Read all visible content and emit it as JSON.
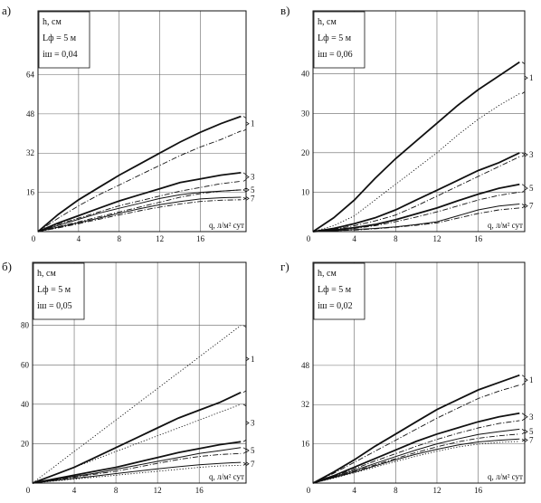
{
  "chart_data": [
    {
      "type": "line",
      "panel_label": "а)",
      "legend": [
        "h, см",
        "Lф = 5 м",
        "iш = 0,04"
      ],
      "xlabel": "q, л/м² сут",
      "x_ticks": [
        4,
        8,
        12,
        16
      ],
      "y_ticks": [
        16,
        32,
        48,
        64
      ],
      "origin_label": "0",
      "xlim": [
        0,
        20.5
      ],
      "ylim": [
        0,
        90
      ],
      "grid": true,
      "x": [
        0,
        2,
        4,
        6,
        8,
        10,
        12,
        14,
        16,
        18,
        20
      ],
      "series": [
        {
          "label": "1",
          "style": "thick",
          "values": [
            0,
            7,
            13,
            18,
            23,
            27.5,
            32,
            36.5,
            40.5,
            44,
            47
          ]
        },
        {
          "style": "dashdot",
          "values": [
            0,
            5.5,
            10.5,
            15,
            19,
            23,
            27,
            31,
            34.5,
            37.5,
            41
          ]
        },
        {
          "label": "3",
          "style": "thick",
          "values": [
            0,
            3.5,
            6.5,
            9.5,
            12.5,
            15,
            17.5,
            20,
            21.5,
            23,
            24
          ]
        },
        {
          "style": "dashdot",
          "values": [
            0,
            3,
            5.5,
            8,
            10.5,
            12.5,
            14.5,
            16.5,
            18,
            19.5,
            20.5
          ]
        },
        {
          "label": "5",
          "style": "thin",
          "values": [
            0,
            2.5,
            5,
            7.5,
            9.5,
            11.5,
            13.5,
            15,
            16,
            16.5,
            17
          ]
        },
        {
          "style": "dashdot",
          "values": [
            0,
            2,
            4,
            6,
            8,
            10,
            12,
            14,
            15.5,
            16.5,
            17
          ]
        },
        {
          "label": "7",
          "style": "thin",
          "values": [
            0,
            1.8,
            3.6,
            5.5,
            7.5,
            9.3,
            11,
            12.3,
            13.3,
            13.8,
            14
          ]
        },
        {
          "style": "dashdot",
          "values": [
            0,
            1.5,
            3.2,
            5,
            6.8,
            8.5,
            10,
            11.3,
            12.3,
            12.8,
            13
          ]
        }
      ]
    },
    {
      "type": "line",
      "panel_label": "в)",
      "legend": [
        "h, см",
        "Lф = 5 м",
        "iш = 0,06"
      ],
      "xlabel": "q, л/м² сут",
      "x_ticks": [
        4,
        8,
        12,
        16
      ],
      "y_ticks": [
        10,
        20,
        30,
        40
      ],
      "origin_label": "0",
      "xlim": [
        0,
        20.5
      ],
      "ylim": [
        0,
        56
      ],
      "grid": true,
      "x": [
        0,
        2,
        4,
        6,
        8,
        10,
        12,
        14,
        16,
        18,
        20
      ],
      "series": [
        {
          "label": "1",
          "style": "thick",
          "values": [
            0,
            3.5,
            8,
            13.5,
            18.5,
            23,
            27.5,
            32,
            36,
            39.5,
            43
          ]
        },
        {
          "style": "dotted",
          "values": [
            0,
            1.5,
            4,
            8,
            12,
            16,
            20,
            24.5,
            28.5,
            32,
            35
          ]
        },
        {
          "label": "3",
          "style": "thick",
          "values": [
            0,
            0.8,
            2,
            3.5,
            5.5,
            8,
            10.5,
            13,
            15.5,
            17.5,
            20
          ]
        },
        {
          "style": "dashdot",
          "values": [
            0,
            0.6,
            1.5,
            2.7,
            4.2,
            6.5,
            9,
            11.5,
            14,
            16.5,
            19
          ]
        },
        {
          "label": "5",
          "style": "thick",
          "values": [
            0,
            0.4,
            1,
            1.8,
            3,
            4.5,
            6,
            7.8,
            9.5,
            11,
            12
          ]
        },
        {
          "style": "dashdot",
          "values": [
            0,
            0.3,
            0.8,
            1.5,
            2.5,
            3.7,
            5,
            6.5,
            8,
            9.2,
            10
          ]
        },
        {
          "label": "7",
          "style": "thin",
          "values": [
            0,
            0.2,
            0.5,
            0.8,
            1.2,
            1.8,
            2.5,
            4,
            5.5,
            6.5,
            7
          ]
        },
        {
          "style": "dashdot",
          "values": [
            0,
            0.2,
            0.4,
            0.7,
            1.1,
            1.6,
            2.2,
            3.4,
            4.6,
            5.5,
            6
          ]
        }
      ]
    },
    {
      "type": "line",
      "panel_label": "б)",
      "legend": [
        "h, см",
        "Lф = 5 м",
        "iш = 0,05"
      ],
      "xlabel": "q, л/м² сут",
      "x_ticks": [
        4,
        8,
        12,
        16
      ],
      "y_ticks": [
        20,
        40,
        60,
        80
      ],
      "origin_label": "0",
      "xlim": [
        0,
        20.5
      ],
      "ylim": [
        0,
        112
      ],
      "grid": true,
      "x": [
        0,
        2,
        4,
        6,
        8,
        10,
        12,
        14,
        16,
        18,
        20
      ],
      "series": [
        {
          "label": "1",
          "style": "dotted",
          "values": [
            0,
            8,
            16,
            24,
            32,
            40,
            48,
            56,
            64,
            72,
            80
          ]
        },
        {
          "style": "thick",
          "values": [
            0,
            4,
            8,
            13,
            18,
            23,
            28,
            33,
            37,
            41,
            46
          ]
        },
        {
          "label": "3",
          "style": "dotted",
          "values": [
            0,
            4,
            8,
            12,
            16,
            20,
            24,
            28,
            32,
            36,
            40
          ]
        },
        {
          "style": "thick",
          "values": [
            0,
            2,
            4,
            6,
            8,
            10.5,
            13,
            15.5,
            17.5,
            19.5,
            21
          ]
        },
        {
          "label": "5",
          "style": "thin",
          "values": [
            0,
            1.7,
            3.4,
            5,
            7,
            9,
            11,
            13,
            15,
            16.5,
            18
          ]
        },
        {
          "style": "dashdot",
          "values": [
            0,
            1.5,
            3,
            4.5,
            6,
            8,
            10,
            12,
            13.5,
            14.5,
            15
          ]
        },
        {
          "label": "7",
          "style": "thin",
          "values": [
            0,
            1.2,
            2.4,
            3.6,
            4.8,
            6,
            7.2,
            8.3,
            9.3,
            10,
            10.5
          ]
        },
        {
          "style": "dotted",
          "values": [
            0,
            1,
            2,
            3,
            4,
            5,
            6,
            7,
            8,
            8.7,
            9
          ]
        }
      ]
    },
    {
      "type": "line",
      "panel_label": "г)",
      "legend": [
        "h, см",
        "Lф = 5 м",
        "iш = 0,02"
      ],
      "xlabel": "q, л/м² сут",
      "x_ticks": [
        4,
        8,
        12,
        16
      ],
      "y_ticks": [
        16,
        32,
        48
      ],
      "origin_label": "0",
      "xlim": [
        0,
        20.5
      ],
      "ylim": [
        0,
        90
      ],
      "grid": true,
      "x": [
        0,
        2,
        4,
        6,
        8,
        10,
        12,
        14,
        16,
        18,
        20
      ],
      "series": [
        {
          "label": "1",
          "style": "thick",
          "values": [
            0,
            4.5,
            9.5,
            15,
            20,
            25,
            30,
            34,
            38,
            41,
            44
          ]
        },
        {
          "style": "dashdot",
          "values": [
            0,
            4,
            8.5,
            13,
            17.5,
            22,
            26.5,
            30.5,
            34.5,
            37.5,
            40
          ]
        },
        {
          "label": "3",
          "style": "thick",
          "values": [
            0,
            3,
            6.5,
            10,
            13.5,
            17,
            20,
            22.5,
            25,
            27,
            28.5
          ]
        },
        {
          "style": "dashdot",
          "values": [
            0,
            2.7,
            5.8,
            9,
            12,
            15,
            17.8,
            20.3,
            22.5,
            24.3,
            25.5
          ]
        },
        {
          "label": "5",
          "style": "thin",
          "values": [
            0,
            2.5,
            5.2,
            8,
            10.8,
            13.5,
            16,
            18,
            19.8,
            21,
            22
          ]
        },
        {
          "style": "dashdot",
          "values": [
            0,
            2.3,
            4.8,
            7.4,
            10,
            12.5,
            14.8,
            16.8,
            18.3,
            19.3,
            20
          ]
        },
        {
          "label": "7",
          "style": "thin",
          "values": [
            0,
            2.2,
            4.5,
            7,
            9.5,
            11.8,
            13.8,
            15.5,
            16.8,
            17.5,
            18
          ]
        },
        {
          "style": "dotted",
          "values": [
            0,
            2,
            4.2,
            6.5,
            8.8,
            11,
            13,
            14.7,
            15.9,
            16.6,
            17
          ]
        }
      ]
    }
  ]
}
